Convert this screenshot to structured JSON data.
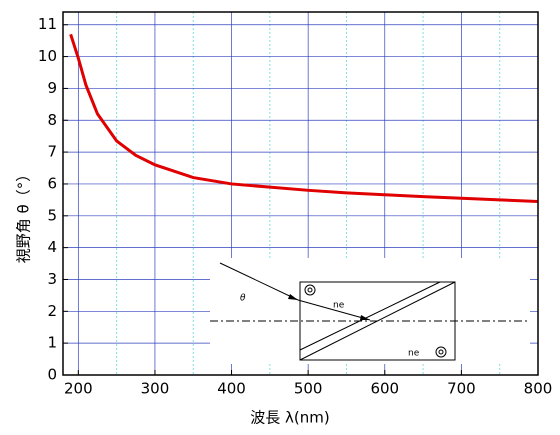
{
  "chart_data": {
    "type": "line",
    "x_label": "波長 λ(nm)",
    "y_label": "視野角 θ（°）",
    "x": [
      190,
      200,
      210,
      225,
      250,
      275,
      300,
      350,
      400,
      450,
      500,
      550,
      600,
      650,
      700,
      750,
      800
    ],
    "series": [
      {
        "color": "#e00000",
        "values": [
          10.7,
          9.95,
          9.1,
          8.2,
          7.35,
          6.9,
          6.6,
          6.2,
          6.0,
          5.9,
          5.8,
          5.72,
          5.66,
          5.6,
          5.55,
          5.5,
          5.45
        ]
      }
    ],
    "xlim": [
      180,
      800
    ],
    "ylim": [
      0,
      11.4
    ],
    "xticks": [
      200,
      300,
      400,
      500,
      600,
      700,
      800
    ],
    "xminorticks": [
      250,
      350,
      450,
      550,
      650,
      750
    ],
    "yticks": [
      0,
      1,
      2,
      3,
      4,
      5,
      6,
      7,
      8,
      9,
      10,
      11
    ],
    "grid": true,
    "inset": {
      "angle_label": "θ",
      "ray_label": "ne",
      "crystal_label": "ne"
    }
  }
}
